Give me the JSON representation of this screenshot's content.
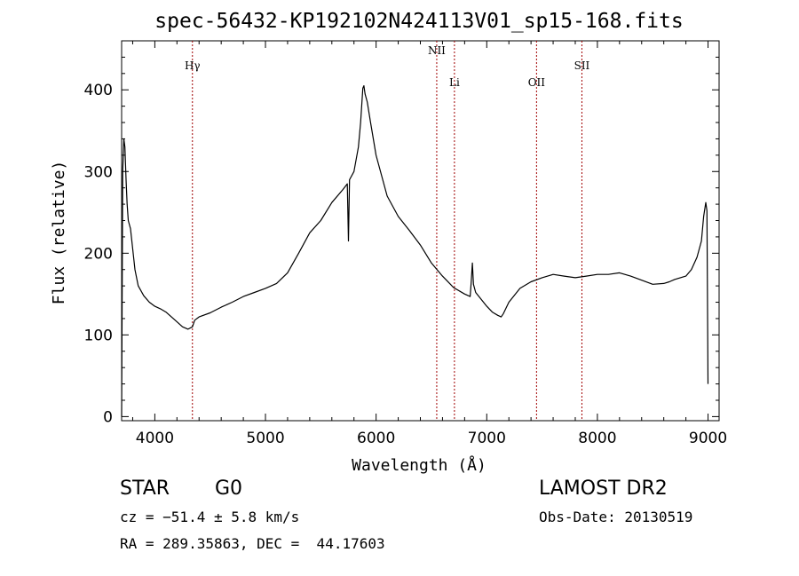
{
  "chart_data": {
    "type": "line",
    "title": "spec-56432-KP192102N424113V01_sp15-168.fits",
    "xlabel": "Wavelength (Å)",
    "ylabel": "Flux (relative)",
    "xlim": [
      3700,
      9100
    ],
    "ylim": [
      -5,
      460
    ],
    "xticks": [
      4000,
      5000,
      6000,
      7000,
      8000,
      9000
    ],
    "yticks": [
      0,
      100,
      200,
      300,
      400
    ],
    "grid": false,
    "series": [
      {
        "color": "#000000",
        "x": [
          3700,
          3710,
          3720,
          3730,
          3740,
          3750,
          3760,
          3780,
          3800,
          3820,
          3850,
          3900,
          3950,
          4000,
          4050,
          4100,
          4150,
          4200,
          4250,
          4300,
          4340,
          4360,
          4400,
          4500,
          4600,
          4700,
          4800,
          4900,
          5000,
          5100,
          5200,
          5300,
          5400,
          5500,
          5600,
          5700,
          5740,
          5750,
          5760,
          5800,
          5840,
          5860,
          5880,
          5890,
          5900,
          5920,
          5950,
          6000,
          6100,
          6200,
          6300,
          6400,
          6500,
          6600,
          6700,
          6800,
          6850,
          6860,
          6870,
          6880,
          6900,
          7000,
          7050,
          7100,
          7130,
          7150,
          7200,
          7300,
          7400,
          7500,
          7600,
          7700,
          7800,
          7900,
          8000,
          8100,
          8200,
          8300,
          8400,
          8500,
          8600,
          8650,
          8700,
          8800,
          8850,
          8900,
          8940,
          8960,
          8980,
          8990,
          9000
        ],
        "y": [
          0,
          300,
          340,
          330,
          290,
          260,
          240,
          230,
          205,
          180,
          160,
          148,
          140,
          135,
          132,
          128,
          122,
          116,
          110,
          107,
          110,
          118,
          122,
          127,
          134,
          140,
          147,
          152,
          157,
          163,
          176,
          200,
          225,
          240,
          262,
          278,
          285,
          215,
          290,
          300,
          330,
          360,
          402,
          405,
          395,
          385,
          360,
          320,
          270,
          245,
          228,
          210,
          188,
          172,
          158,
          150,
          147,
          165,
          188,
          162,
          152,
          135,
          128,
          124,
          122,
          126,
          140,
          157,
          165,
          170,
          174,
          172,
          170,
          172,
          174,
          174,
          176,
          172,
          167,
          162,
          163,
          165,
          168,
          172,
          180,
          195,
          215,
          245,
          262,
          252,
          40
        ]
      }
    ],
    "annotations": [
      {
        "label": "Hγ",
        "x": 4340
      },
      {
        "label": "NII",
        "x": 6548
      },
      {
        "label": "Li",
        "x": 6708
      },
      {
        "label": "OII",
        "x": 7450
      },
      {
        "label": "SII",
        "x": 7860
      }
    ],
    "line_color": "#a00000"
  },
  "info": {
    "object_class": "STAR",
    "subclass": "G0",
    "survey": "LAMOST DR2",
    "cz": "cz = −51.4 ± 5.8 km/s",
    "obs_date": "Obs-Date: 20130519",
    "coords": "RA = 289.35863, DEC =  44.17603"
  }
}
